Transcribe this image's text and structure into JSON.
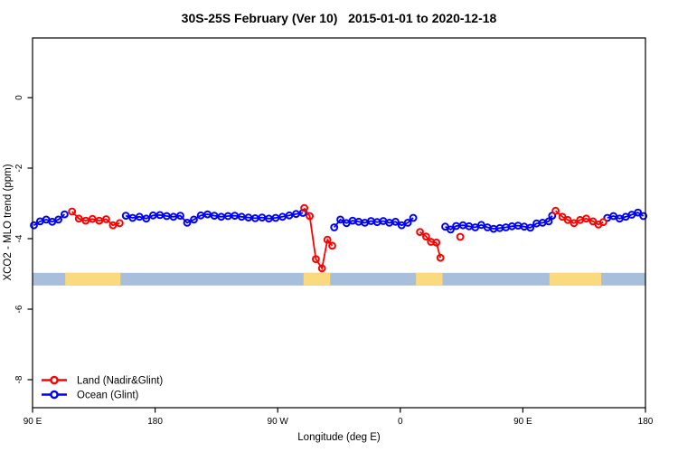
{
  "chart_data": {
    "type": "line",
    "title": "30S-25S February (Ver 10)   2015-01-01 to 2020-12-18",
    "xlabel": "Longitude (deg E)",
    "ylabel": "XCO2 - MLO trend (ppm)",
    "xlim": [
      90,
      540
    ],
    "ylim": [
      -8.795,
      1.692
    ],
    "grid": false,
    "legend_position": "bottom-left",
    "x_ticks": [
      {
        "value": 90,
        "label": "90 E"
      },
      {
        "value": 180,
        "label": "180"
      },
      {
        "value": 270,
        "label": "90 W"
      },
      {
        "value": 360,
        "label": "0"
      },
      {
        "value": 450,
        "label": "90 E"
      },
      {
        "value": 540,
        "label": "180"
      }
    ],
    "y_ticks": [
      {
        "value": 0,
        "label": "0"
      },
      {
        "value": -2,
        "label": "-2"
      },
      {
        "value": -4,
        "label": "-4"
      },
      {
        "value": -6,
        "label": "-6"
      },
      {
        "value": -8,
        "label": "-8"
      }
    ],
    "surface_band": {
      "description": "land/ocean longitude strip",
      "value_top": -4.97,
      "value_bottom": -5.33,
      "ocean_color": "#A8BFDC",
      "land_color": "#FBD97E",
      "land_segments_deg": [
        [
          114,
          154.5
        ],
        [
          289,
          308.5
        ],
        [
          371.5,
          391
        ],
        [
          469.5,
          507.5
        ]
      ]
    },
    "series": [
      {
        "name": "Land (Nadir&Glint)",
        "color": "#FF0000",
        "segments": [
          [
            [
              119,
              -3.23
            ],
            [
              124,
              -3.43
            ],
            [
              129,
              -3.49
            ],
            [
              134,
              -3.44
            ],
            [
              139,
              -3.49
            ],
            [
              144,
              -3.45
            ],
            [
              149,
              -3.62
            ],
            [
              154,
              -3.56
            ]
          ],
          [
            [
              289.5,
              -3.13
            ],
            [
              293.5,
              -3.36
            ],
            [
              298,
              -4.58
            ],
            [
              302.5,
              -4.84
            ],
            [
              306.5,
              -4.03
            ],
            [
              310,
              -4.2
            ]
          ],
          [
            [
              374.5,
              -3.81
            ],
            [
              379,
              -3.94
            ],
            [
              382.5,
              -4.09
            ],
            [
              386.5,
              -4.11
            ],
            [
              389.5,
              -4.54
            ]
          ],
          [
            [
              404,
              -3.95
            ]
          ],
          [
            [
              474,
              -3.21
            ],
            [
              479,
              -3.38
            ],
            [
              483,
              -3.47
            ],
            [
              487.5,
              -3.56
            ],
            [
              492,
              -3.47
            ],
            [
              496.5,
              -3.43
            ],
            [
              501.5,
              -3.51
            ],
            [
              505.5,
              -3.6
            ],
            [
              509,
              -3.53
            ]
          ]
        ]
      },
      {
        "name": "Ocean (Glint)",
        "color": "#0000FF",
        "segments": [
          [
            [
              91,
              -3.62
            ],
            [
              95.5,
              -3.51
            ],
            [
              100,
              -3.46
            ],
            [
              104.5,
              -3.52
            ],
            [
              109,
              -3.46
            ],
            [
              113.5,
              -3.31
            ]
          ],
          [
            [
              158.5,
              -3.35
            ],
            [
              163.5,
              -3.41
            ],
            [
              168.5,
              -3.38
            ],
            [
              173.5,
              -3.43
            ],
            [
              178.5,
              -3.34
            ],
            [
              183.5,
              -3.33
            ],
            [
              188.5,
              -3.36
            ],
            [
              193.5,
              -3.38
            ],
            [
              198.5,
              -3.35
            ],
            [
              203.5,
              -3.55
            ],
            [
              208.5,
              -3.46
            ],
            [
              213.5,
              -3.34
            ],
            [
              218.5,
              -3.31
            ],
            [
              223.5,
              -3.35
            ],
            [
              228.5,
              -3.38
            ],
            [
              233.5,
              -3.36
            ],
            [
              238.5,
              -3.35
            ],
            [
              243.5,
              -3.38
            ],
            [
              248.5,
              -3.4
            ],
            [
              253.5,
              -3.42
            ],
            [
              258.5,
              -3.4
            ],
            [
              263.5,
              -3.43
            ],
            [
              268.5,
              -3.41
            ],
            [
              273.5,
              -3.38
            ],
            [
              278.5,
              -3.34
            ],
            [
              283.5,
              -3.3
            ],
            [
              288.5,
              -3.27
            ]
          ],
          [
            [
              311.5,
              -3.68
            ],
            [
              316,
              -3.46
            ],
            [
              320.5,
              -3.56
            ],
            [
              325,
              -3.49
            ],
            [
              329.5,
              -3.52
            ],
            [
              334,
              -3.55
            ],
            [
              338.5,
              -3.5
            ],
            [
              343,
              -3.53
            ],
            [
              347.5,
              -3.5
            ],
            [
              352,
              -3.55
            ],
            [
              356.5,
              -3.52
            ],
            [
              361,
              -3.62
            ],
            [
              365.5,
              -3.55
            ],
            [
              369.5,
              -3.41
            ]
          ],
          [
            [
              393,
              -3.66
            ],
            [
              397,
              -3.74
            ],
            [
              401,
              -3.64
            ],
            [
              406,
              -3.62
            ],
            [
              410.5,
              -3.65
            ],
            [
              415,
              -3.68
            ],
            [
              419.5,
              -3.61
            ],
            [
              424,
              -3.68
            ],
            [
              428.5,
              -3.72
            ],
            [
              433,
              -3.7
            ],
            [
              437.5,
              -3.68
            ],
            [
              442,
              -3.65
            ],
            [
              446.5,
              -3.63
            ],
            [
              451,
              -3.66
            ],
            [
              455.5,
              -3.69
            ],
            [
              460,
              -3.57
            ],
            [
              464.5,
              -3.55
            ],
            [
              469,
              -3.51
            ],
            [
              471.5,
              -3.35
            ]
          ],
          [
            [
              512,
              -3.41
            ],
            [
              516.5,
              -3.36
            ],
            [
              521,
              -3.43
            ],
            [
              525.5,
              -3.38
            ],
            [
              530,
              -3.32
            ],
            [
              534.5,
              -3.26
            ],
            [
              538.5,
              -3.36
            ]
          ]
        ]
      }
    ]
  }
}
